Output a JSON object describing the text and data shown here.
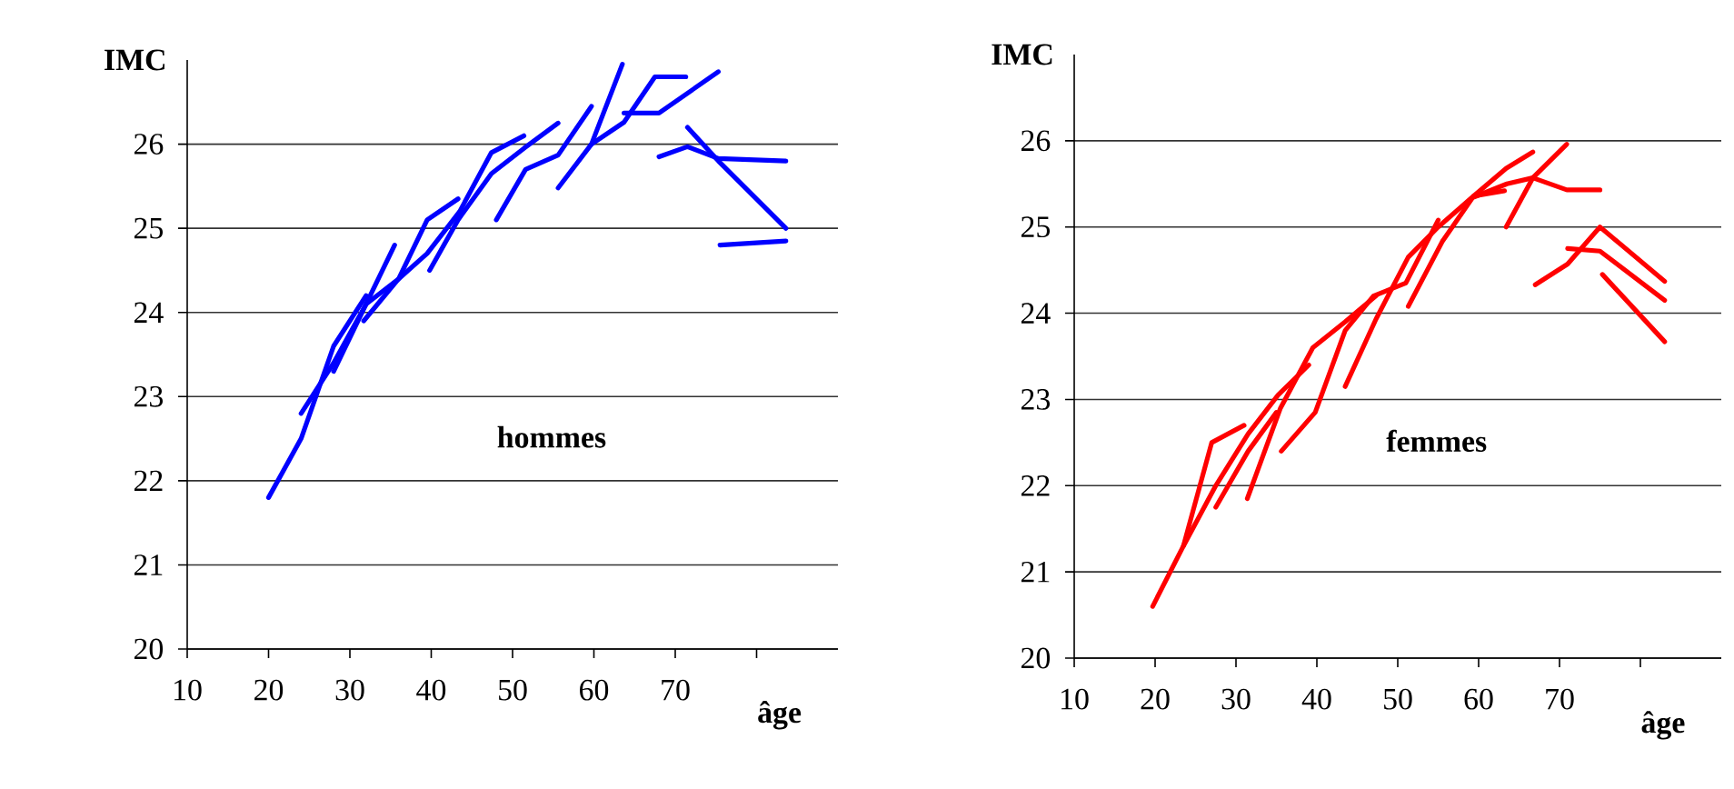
{
  "chart_data": [
    {
      "type": "line",
      "xlabel": "âge",
      "ylabel": "IMC",
      "annotations": [
        "hommes"
      ],
      "xlim": [
        10,
        90
      ],
      "ylim": [
        20,
        27
      ],
      "xticks": [
        10,
        20,
        30,
        40,
        50,
        60,
        70,
        {
          "value": 80,
          "label": null
        }
      ],
      "yticks": [
        20,
        21,
        22,
        23,
        24,
        25,
        26
      ],
      "grid": "y",
      "series": [
        {
          "color": "#0000ff",
          "x": [
            20,
            24,
            28,
            32
          ],
          "values": [
            21.8,
            22.5,
            23.6,
            24.2
          ]
        },
        {
          "color": "#0000ff",
          "x": [
            24,
            28,
            32,
            35.5
          ],
          "values": [
            22.8,
            23.4,
            24.1,
            24.8
          ]
        },
        {
          "color": "#0000ff",
          "x": [
            28,
            32,
            36,
            39.5,
            43.3
          ],
          "values": [
            23.3,
            24.1,
            24.4,
            25.1,
            25.35
          ]
        },
        {
          "color": "#0000ff",
          "x": [
            31.7,
            36,
            39.5,
            43.5,
            47.4,
            51.4
          ],
          "values": [
            23.9,
            24.4,
            24.7,
            25.2,
            25.9,
            26.1
          ]
        },
        {
          "color": "#0000ff",
          "x": [
            39.8,
            43.3,
            47.4,
            51.4,
            55.6
          ],
          "values": [
            24.5,
            25.1,
            25.65,
            25.95,
            26.25
          ]
        },
        {
          "color": "#0000ff",
          "x": [
            48,
            51.6,
            55.6,
            59.7
          ],
          "values": [
            25.1,
            25.7,
            25.87,
            26.45
          ]
        },
        {
          "color": "#0000ff",
          "x": [
            55.6,
            59.7,
            63.5
          ],
          "values": [
            25.48,
            26.0,
            26.95
          ]
        },
        {
          "color": "#0000ff",
          "x": [
            59.7,
            63.7,
            67.5,
            71.3
          ],
          "values": [
            26.0,
            26.26,
            26.8,
            26.8
          ]
        },
        {
          "color": "#0000ff",
          "x": [
            63.7,
            68,
            75.3
          ],
          "values": [
            26.37,
            26.37,
            26.86
          ]
        },
        {
          "color": "#0000ff",
          "x": [
            68,
            71.5,
            75.3,
            83.6
          ],
          "values": [
            25.85,
            25.97,
            25.83,
            25.8
          ]
        },
        {
          "color": "#0000ff",
          "x": [
            71.5,
            75.3,
            83.6
          ],
          "values": [
            26.2,
            25.8,
            25.0
          ]
        },
        {
          "color": "#0000ff",
          "x": [
            75.5,
            83.6
          ],
          "values": [
            24.8,
            24.85
          ]
        }
      ]
    },
    {
      "type": "line",
      "xlabel": "âge",
      "ylabel": "IMC",
      "annotations": [
        "femmes"
      ],
      "xlim": [
        10,
        90
      ],
      "ylim": [
        20,
        27
      ],
      "xticks": [
        10,
        20,
        30,
        40,
        50,
        60,
        70,
        {
          "value": 80,
          "label": null
        }
      ],
      "yticks": [
        20,
        21,
        22,
        23,
        24,
        25,
        26
      ],
      "grid": "y",
      "series": [
        {
          "color": "#ff0000",
          "x": [
            19.7,
            23.5,
            27,
            31
          ],
          "values": [
            20.6,
            21.3,
            22.5,
            22.7
          ]
        },
        {
          "color": "#ff0000",
          "x": [
            23.5,
            27.5,
            31.5,
            35.2,
            39
          ],
          "values": [
            21.3,
            22.0,
            22.6,
            23.05,
            23.4
          ]
        },
        {
          "color": "#ff0000",
          "x": [
            27.5,
            31.5,
            35
          ],
          "values": [
            21.75,
            22.4,
            22.85
          ]
        },
        {
          "color": "#ff0000",
          "x": [
            31.4,
            35.5,
            39.5,
            43.5,
            47.3
          ],
          "values": [
            21.85,
            22.9,
            23.6,
            23.9,
            24.2
          ]
        },
        {
          "color": "#ff0000",
          "x": [
            35.6,
            39.8,
            43.5,
            47,
            51,
            55
          ],
          "values": [
            22.4,
            22.85,
            23.8,
            24.2,
            24.35,
            25.08
          ]
        },
        {
          "color": "#ff0000",
          "x": [
            43.5,
            47.3,
            51.3,
            55,
            59.4,
            63.4,
            66.7
          ],
          "values": [
            23.15,
            23.93,
            24.65,
            25.0,
            25.36,
            25.68,
            25.87
          ]
        },
        {
          "color": "#ff0000",
          "x": [
            51.3,
            55.5,
            59.4,
            63.2
          ],
          "values": [
            24.08,
            24.83,
            25.36,
            25.42
          ]
        },
        {
          "color": "#ff0000",
          "x": [
            63.4,
            66.7,
            70.9
          ],
          "values": [
            25.0,
            25.57,
            25.96
          ]
        },
        {
          "color": "#ff0000",
          "x": [
            59.5,
            63.5,
            66.7,
            70.9,
            75
          ],
          "values": [
            25.35,
            25.5,
            25.57,
            25.43,
            25.43
          ]
        },
        {
          "color": "#ff0000",
          "x": [
            67,
            71,
            75,
            83
          ],
          "values": [
            24.33,
            24.57,
            25.0,
            24.37
          ]
        },
        {
          "color": "#ff0000",
          "x": [
            71,
            75,
            83
          ],
          "values": [
            24.75,
            24.72,
            24.15
          ]
        },
        {
          "color": "#ff0000",
          "x": [
            75.3,
            83
          ],
          "values": [
            24.45,
            23.67
          ]
        }
      ]
    }
  ]
}
